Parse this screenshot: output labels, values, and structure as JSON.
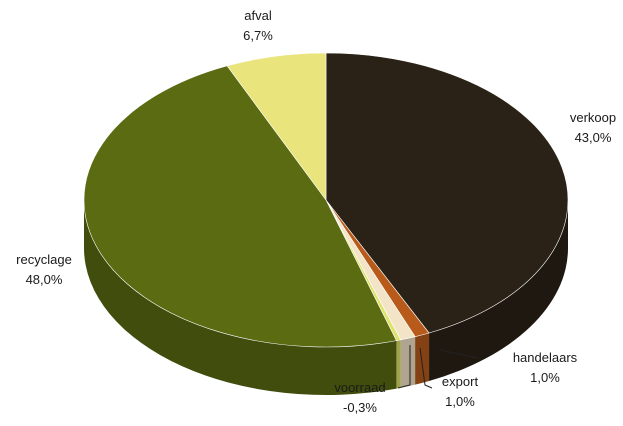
{
  "chart_data": {
    "type": "pie",
    "style": "3d",
    "title": "",
    "slices": [
      {
        "name": "verkoop",
        "value": 43.0,
        "label": "43,0%",
        "color": "#2b2217"
      },
      {
        "name": "handelaars",
        "value": 1.0,
        "label": "1,0%",
        "color": "#b85a1a"
      },
      {
        "name": "export",
        "value": 1.0,
        "label": "1,0%",
        "color": "#f3e4c7"
      },
      {
        "name": "voorraad",
        "value": -0.3,
        "label": "-0,3%",
        "color": "#dfe36a"
      },
      {
        "name": "recyclage",
        "value": 48.0,
        "label": "48,0%",
        "color": "#5a6b12"
      },
      {
        "name": "afval",
        "value": 6.7,
        "label": "6,7%",
        "color": "#e9e47c"
      }
    ]
  }
}
